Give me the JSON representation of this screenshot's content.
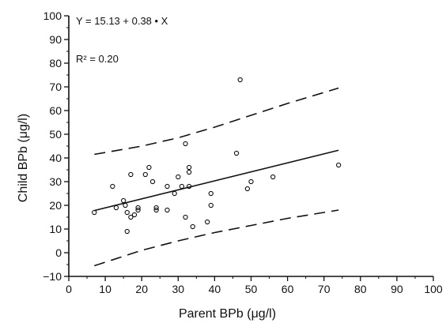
{
  "chart_data": {
    "type": "scatter",
    "xlabel": "Parent BPb (μg/l)",
    "ylabel": "Child BPb (μg/l)",
    "xlim": [
      0,
      100
    ],
    "ylim": [
      -10,
      100
    ],
    "x_ticks": [
      0,
      10,
      20,
      30,
      40,
      50,
      60,
      70,
      80,
      90,
      100
    ],
    "y_ticks": [
      -10,
      0,
      10,
      20,
      30,
      40,
      50,
      60,
      70,
      80,
      90,
      100
    ],
    "annotations": {
      "equation": "Y = 15.13 + 0.38 • X",
      "r2_label": "R² = 0.20"
    },
    "grid": false,
    "legend": "none",
    "points": [
      {
        "x": 7,
        "y": 17
      },
      {
        "x": 12,
        "y": 28
      },
      {
        "x": 13,
        "y": 19
      },
      {
        "x": 15,
        "y": 22
      },
      {
        "x": 15.5,
        "y": 20
      },
      {
        "x": 16,
        "y": 17
      },
      {
        "x": 16,
        "y": 9
      },
      {
        "x": 17,
        "y": 15
      },
      {
        "x": 17,
        "y": 33
      },
      {
        "x": 18,
        "y": 16
      },
      {
        "x": 19,
        "y": 18
      },
      {
        "x": 19,
        "y": 19
      },
      {
        "x": 21,
        "y": 33
      },
      {
        "x": 22,
        "y": 36
      },
      {
        "x": 23,
        "y": 30
      },
      {
        "x": 24,
        "y": 19
      },
      {
        "x": 24,
        "y": 18
      },
      {
        "x": 27,
        "y": 28
      },
      {
        "x": 27,
        "y": 18
      },
      {
        "x": 29,
        "y": 25
      },
      {
        "x": 30,
        "y": 32
      },
      {
        "x": 31,
        "y": 28
      },
      {
        "x": 32,
        "y": 46
      },
      {
        "x": 32,
        "y": 15
      },
      {
        "x": 33,
        "y": 36
      },
      {
        "x": 33,
        "y": 34
      },
      {
        "x": 33,
        "y": 28
      },
      {
        "x": 34,
        "y": 11
      },
      {
        "x": 38,
        "y": 13
      },
      {
        "x": 39,
        "y": 25
      },
      {
        "x": 39,
        "y": 20
      },
      {
        "x": 46,
        "y": 42
      },
      {
        "x": 47,
        "y": 73
      },
      {
        "x": 49,
        "y": 27
      },
      {
        "x": 50,
        "y": 30
      },
      {
        "x": 56,
        "y": 32
      },
      {
        "x": 74,
        "y": 37
      }
    ],
    "regression_line": {
      "intercept": 15.13,
      "slope": 0.38,
      "x_range": [
        7,
        74
      ]
    },
    "confidence_bands": {
      "upper": [
        [
          7,
          41.5
        ],
        [
          20,
          45
        ],
        [
          30,
          48.5
        ],
        [
          40,
          53
        ],
        [
          50,
          58
        ],
        [
          60,
          63
        ],
        [
          74,
          69.5
        ]
      ],
      "lower": [
        [
          7,
          -5.5
        ],
        [
          20,
          1
        ],
        [
          30,
          5
        ],
        [
          40,
          8.5
        ],
        [
          50,
          11.5
        ],
        [
          60,
          14.5
        ],
        [
          74,
          18
        ]
      ]
    }
  }
}
